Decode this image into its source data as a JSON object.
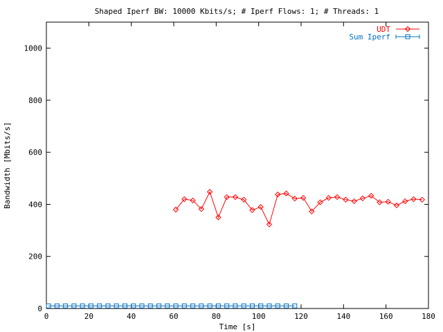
{
  "chart_data": {
    "type": "line",
    "title": "Shaped Iperf BW: 10000 Kbits/s; # Iperf Flows: 1; # Threads: 1",
    "xlabel": "Time [s]",
    "ylabel": "Bandwidth [Mbits/s]",
    "xlim": [
      0,
      180
    ],
    "ylim": [
      0,
      1100
    ],
    "xticks": [
      0,
      20,
      40,
      60,
      80,
      100,
      120,
      140,
      160,
      180
    ],
    "yticks": [
      0,
      200,
      400,
      600,
      800,
      1000
    ],
    "grid": false,
    "legend_position": "top-right",
    "series": [
      {
        "name": "UDT",
        "color": "#ff0000",
        "marker": "diamond",
        "x": [
          61,
          65,
          69,
          73,
          77,
          81,
          85,
          89,
          93,
          97,
          101,
          105,
          109,
          113,
          117,
          121,
          125,
          129,
          133,
          137,
          141,
          145,
          149,
          153,
          157,
          161,
          165,
          169,
          173,
          177
        ],
        "y": [
          380,
          420,
          415,
          382,
          448,
          350,
          428,
          428,
          418,
          378,
          390,
          323,
          438,
          442,
          422,
          425,
          373,
          408,
          425,
          428,
          418,
          412,
          423,
          433,
          408,
          410,
          396,
          412,
          420,
          418
        ]
      },
      {
        "name": "Sum Iperf",
        "color": "#0070c0",
        "marker": "square",
        "x": [
          1,
          5,
          9,
          13,
          17,
          21,
          25,
          29,
          33,
          37,
          41,
          45,
          49,
          53,
          57,
          61,
          65,
          69,
          73,
          77,
          81,
          85,
          89,
          93,
          97,
          101,
          105,
          109,
          113,
          117
        ],
        "y": [
          10,
          10,
          10,
          10,
          10,
          10,
          10,
          10,
          10,
          10,
          10,
          10,
          10,
          10,
          10,
          10,
          10,
          10,
          10,
          10,
          10,
          10,
          10,
          10,
          10,
          10,
          10,
          10,
          10,
          10
        ]
      }
    ]
  }
}
